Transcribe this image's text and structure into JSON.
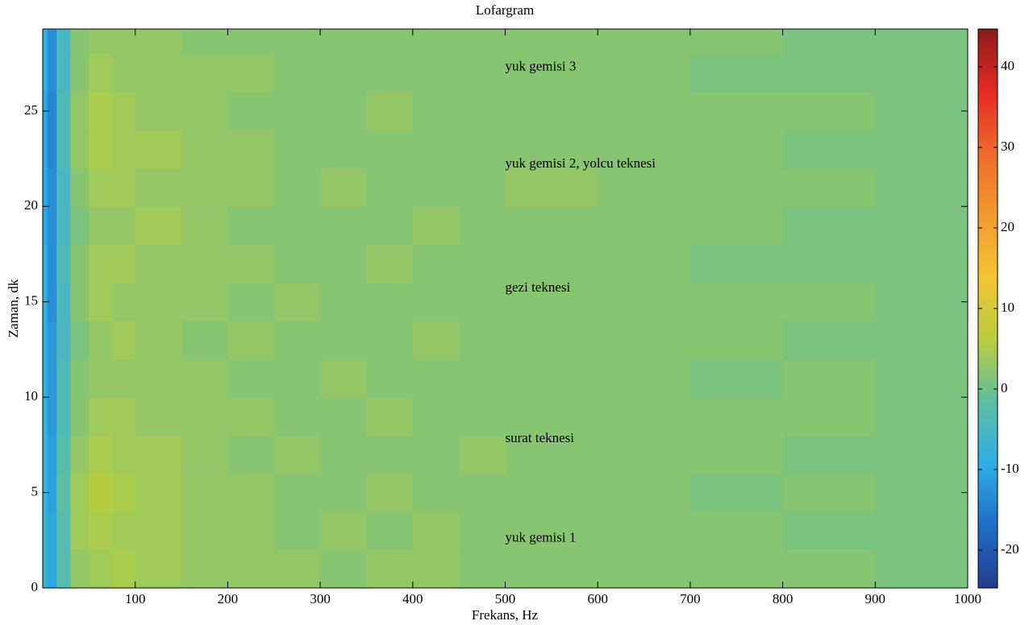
{
  "chart_data": {
    "type": "heatmap",
    "title": "Lofargram",
    "x_label": "Frekans, Hz",
    "y_label": "Zaman, dk",
    "xlim": [
      0,
      1000
    ],
    "xticks": [
      100,
      200,
      300,
      400,
      500,
      600,
      700,
      800,
      900,
      1000
    ],
    "ylim": [
      0,
      29.3
    ],
    "yticks": [
      0,
      5,
      10,
      15,
      20,
      25
    ],
    "xbins": [
      0,
      5,
      15,
      30,
      50,
      75,
      100,
      150,
      200,
      250,
      300,
      350,
      400,
      450,
      500,
      600,
      700,
      800,
      900,
      1000
    ],
    "ybins": [
      0,
      2,
      4,
      6,
      8,
      10,
      12,
      14,
      16,
      18,
      20,
      22,
      24,
      26,
      28,
      29.3
    ],
    "z": [
      [
        -7,
        -10,
        -3,
        3,
        4,
        5,
        4,
        3,
        3,
        3,
        2,
        3,
        3,
        2,
        2,
        2,
        2,
        2,
        1
      ],
      [
        -7,
        -10,
        -3,
        4,
        5,
        4,
        4,
        3,
        3,
        2,
        3,
        2,
        3,
        2,
        2,
        2,
        2,
        1,
        1
      ],
      [
        -8,
        -11,
        -2,
        4,
        6,
        5,
        4,
        3,
        3,
        2,
        2,
        3,
        2,
        2,
        2,
        2,
        1,
        2,
        1
      ],
      [
        -8,
        -11,
        -3,
        3,
        5,
        4,
        4,
        3,
        2,
        3,
        2,
        2,
        2,
        3,
        2,
        2,
        2,
        1,
        1
      ],
      [
        -8,
        -12,
        -4,
        2,
        4,
        4,
        3,
        3,
        3,
        2,
        2,
        3,
        2,
        2,
        2,
        2,
        2,
        2,
        1
      ],
      [
        -9,
        -12,
        -4,
        2,
        3,
        3,
        3,
        3,
        2,
        2,
        3,
        2,
        2,
        2,
        2,
        2,
        1,
        2,
        1
      ],
      [
        -9,
        -12,
        -5,
        1,
        3,
        4,
        3,
        2,
        3,
        2,
        2,
        2,
        3,
        2,
        2,
        2,
        2,
        1,
        1
      ],
      [
        -9,
        -13,
        -5,
        2,
        4,
        3,
        3,
        3,
        2,
        3,
        2,
        2,
        2,
        2,
        2,
        2,
        2,
        2,
        1
      ],
      [
        -9,
        -13,
        -4,
        2,
        4,
        4,
        3,
        3,
        3,
        2,
        2,
        3,
        2,
        2,
        2,
        2,
        1,
        1,
        1
      ],
      [
        -10,
        -13,
        -5,
        1,
        3,
        3,
        4,
        3,
        2,
        2,
        2,
        2,
        3,
        2,
        2,
        2,
        2,
        1,
        1
      ],
      [
        -10,
        -13,
        -5,
        2,
        4,
        4,
        3,
        3,
        3,
        2,
        3,
        2,
        2,
        2,
        3,
        2,
        2,
        2,
        1
      ],
      [
        -10,
        -14,
        -4,
        3,
        5,
        4,
        4,
        3,
        3,
        2,
        2,
        2,
        2,
        2,
        2,
        2,
        2,
        1,
        1
      ],
      [
        -10,
        -14,
        -4,
        3,
        5,
        4,
        3,
        3,
        2,
        2,
        2,
        3,
        2,
        2,
        2,
        2,
        2,
        2,
        1
      ],
      [
        -9,
        -13,
        -5,
        2,
        4,
        3,
        3,
        3,
        3,
        2,
        2,
        2,
        2,
        2,
        2,
        2,
        1,
        1,
        1
      ],
      [
        -9,
        -13,
        -5,
        2,
        3,
        3,
        3,
        2,
        2,
        2,
        2,
        2,
        2,
        2,
        2,
        2,
        2,
        1,
        1
      ]
    ],
    "clim": [
      -24.7,
      44.7
    ],
    "cticks": [
      -20,
      -10,
      0,
      10,
      20,
      30,
      40
    ],
    "colormap": [
      "#253c8c",
      "#1e6dc8",
      "#30aee6",
      "#5dbea0",
      "#b9cd3e",
      "#f3c531",
      "#f39a2e",
      "#ee6a2a",
      "#e52a25",
      "#8c1a1a"
    ],
    "annotations": [
      {
        "text": "yuk gemisi 3",
        "x": 500,
        "y": 27.3
      },
      {
        "text": "yuk gemisi 2, yolcu teknesi",
        "x": 500,
        "y": 22.2
      },
      {
        "text": "gezi teknesi",
        "x": 500,
        "y": 15.7
      },
      {
        "text": "surat teknesi",
        "x": 500,
        "y": 7.8
      },
      {
        "text": "yuk gemisi 1",
        "x": 500,
        "y": 2.6
      }
    ]
  }
}
